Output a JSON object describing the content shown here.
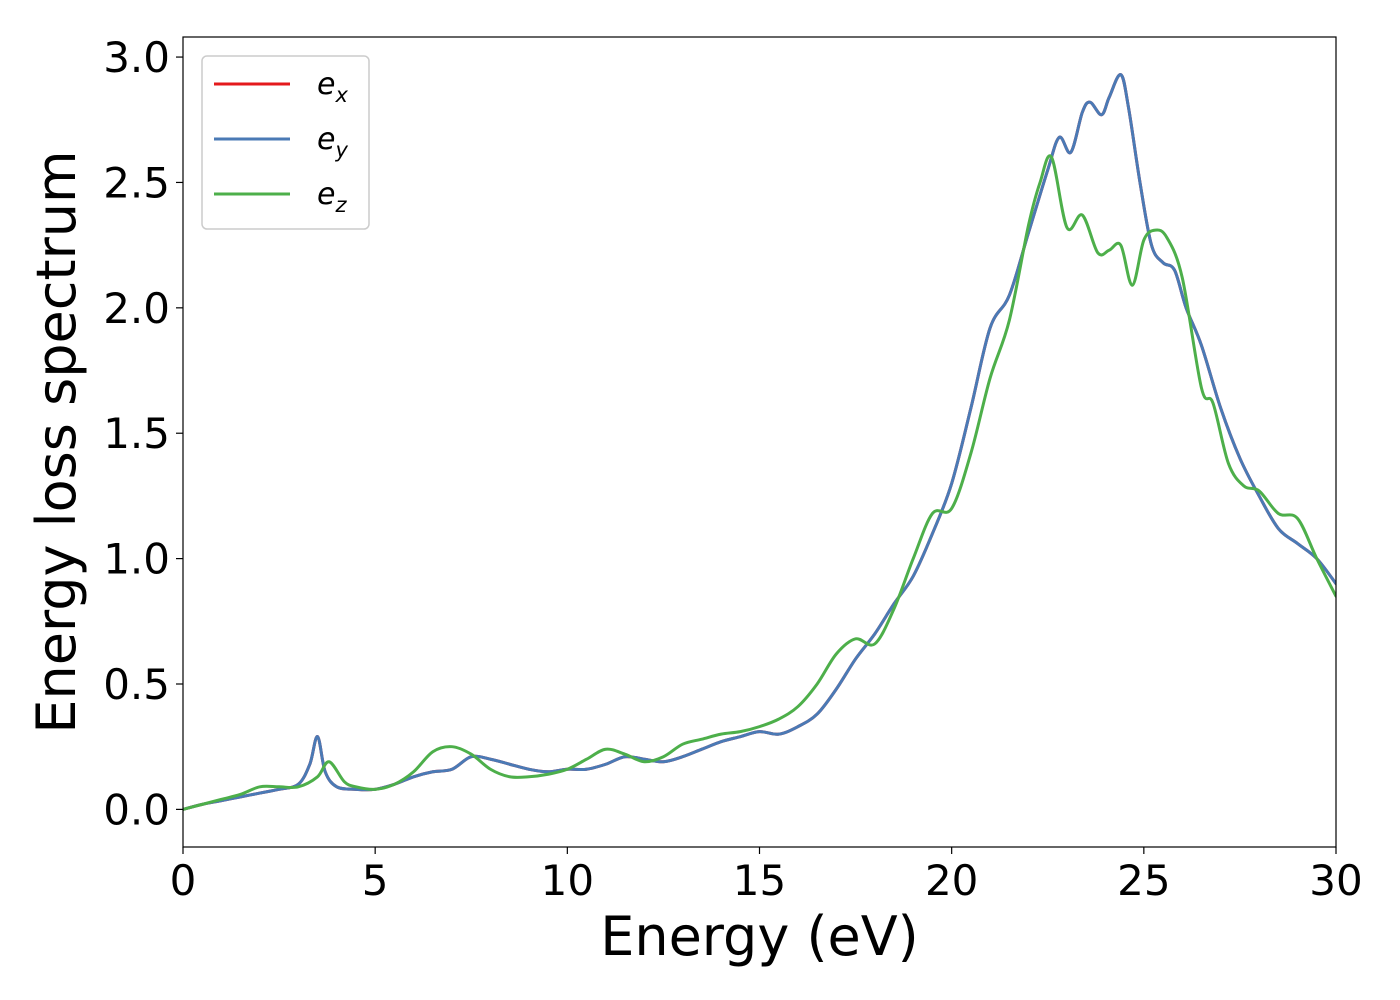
{
  "chart_data": {
    "type": "line",
    "xlabel": "Energy (eV)",
    "ylabel": "Energy loss spectrum",
    "xlim": [
      0,
      30
    ],
    "ylim": [
      -0.15,
      3.08
    ],
    "xticks": [
      0,
      5,
      10,
      15,
      20,
      25,
      30
    ],
    "xtick_labels": [
      "0",
      "5",
      "10",
      "15",
      "20",
      "25",
      "30"
    ],
    "yticks": [
      0.0,
      0.5,
      1.0,
      1.5,
      2.0,
      2.5,
      3.0
    ],
    "ytick_labels": [
      "0.0",
      "0.5",
      "1.0",
      "1.5",
      "2.0",
      "2.5",
      "3.0"
    ],
    "grid": false,
    "legend_position": "top-left",
    "series": [
      {
        "name": "e_x",
        "label_main": "e",
        "label_sub": "x",
        "color": "#e41a1c",
        "x": [
          0,
          0.5,
          1,
          1.5,
          2,
          2.5,
          3,
          3.3,
          3.5,
          3.7,
          4,
          4.5,
          5,
          5.5,
          6,
          6.5,
          7,
          7.5,
          8,
          8.5,
          9,
          9.5,
          10,
          10.5,
          11,
          11.5,
          12,
          12.5,
          13,
          13.5,
          14,
          14.5,
          15,
          15.5,
          16,
          16.5,
          17,
          17.5,
          18,
          18.5,
          19,
          19.5,
          20,
          20.5,
          21,
          21.5,
          22,
          22.5,
          22.8,
          23.1,
          23.4,
          23.6,
          23.9,
          24.1,
          24.4,
          24.6,
          24.9,
          25.2,
          25.5,
          25.8,
          26.1,
          26.5,
          27,
          27.5,
          28,
          28.5,
          29,
          29.5,
          30
        ],
        "y": [
          0.0,
          0.02,
          0.035,
          0.05,
          0.065,
          0.08,
          0.1,
          0.18,
          0.29,
          0.15,
          0.09,
          0.08,
          0.08,
          0.1,
          0.13,
          0.15,
          0.16,
          0.21,
          0.2,
          0.18,
          0.16,
          0.15,
          0.16,
          0.16,
          0.18,
          0.21,
          0.2,
          0.19,
          0.21,
          0.24,
          0.27,
          0.29,
          0.31,
          0.3,
          0.33,
          0.38,
          0.48,
          0.6,
          0.7,
          0.82,
          0.93,
          1.1,
          1.3,
          1.6,
          1.92,
          2.05,
          2.3,
          2.55,
          2.68,
          2.62,
          2.78,
          2.82,
          2.77,
          2.84,
          2.93,
          2.8,
          2.5,
          2.25,
          2.18,
          2.15,
          2.0,
          1.85,
          1.6,
          1.4,
          1.25,
          1.12,
          1.06,
          1.0,
          0.9
        ]
      },
      {
        "name": "e_y",
        "label_main": "e",
        "label_sub": "y",
        "color": "#4a7ab5",
        "x": [
          0,
          0.5,
          1,
          1.5,
          2,
          2.5,
          3,
          3.3,
          3.5,
          3.7,
          4,
          4.5,
          5,
          5.5,
          6,
          6.5,
          7,
          7.5,
          8,
          8.5,
          9,
          9.5,
          10,
          10.5,
          11,
          11.5,
          12,
          12.5,
          13,
          13.5,
          14,
          14.5,
          15,
          15.5,
          16,
          16.5,
          17,
          17.5,
          18,
          18.5,
          19,
          19.5,
          20,
          20.5,
          21,
          21.5,
          22,
          22.5,
          22.8,
          23.1,
          23.4,
          23.6,
          23.9,
          24.1,
          24.4,
          24.6,
          24.9,
          25.2,
          25.5,
          25.8,
          26.1,
          26.5,
          27,
          27.5,
          28,
          28.5,
          29,
          29.5,
          30
        ],
        "y": [
          0.0,
          0.02,
          0.035,
          0.05,
          0.065,
          0.08,
          0.1,
          0.18,
          0.29,
          0.15,
          0.09,
          0.08,
          0.08,
          0.1,
          0.13,
          0.15,
          0.16,
          0.21,
          0.2,
          0.18,
          0.16,
          0.15,
          0.16,
          0.16,
          0.18,
          0.21,
          0.2,
          0.19,
          0.21,
          0.24,
          0.27,
          0.29,
          0.31,
          0.3,
          0.33,
          0.38,
          0.48,
          0.6,
          0.7,
          0.82,
          0.93,
          1.1,
          1.3,
          1.6,
          1.92,
          2.05,
          2.3,
          2.55,
          2.68,
          2.62,
          2.78,
          2.82,
          2.77,
          2.84,
          2.93,
          2.8,
          2.5,
          2.25,
          2.18,
          2.15,
          2.0,
          1.85,
          1.6,
          1.4,
          1.25,
          1.12,
          1.06,
          1.0,
          0.9
        ]
      },
      {
        "name": "e_z",
        "label_main": "e",
        "label_sub": "z",
        "color": "#4daf4a",
        "x": [
          0,
          0.5,
          1,
          1.5,
          2,
          2.5,
          3,
          3.5,
          3.8,
          4.2,
          4.5,
          5,
          5.5,
          6,
          6.5,
          7,
          7.5,
          8,
          8.5,
          9,
          9.5,
          10,
          10.5,
          11,
          11.5,
          12,
          12.5,
          13,
          13.5,
          14,
          14.5,
          15,
          15.5,
          16,
          16.5,
          17,
          17.5,
          18,
          18.5,
          19,
          19.5,
          20,
          20.5,
          21,
          21.5,
          22,
          22.3,
          22.6,
          23,
          23.4,
          23.8,
          24.1,
          24.4,
          24.7,
          25,
          25.3,
          25.6,
          26,
          26.5,
          26.8,
          27.2,
          27.6,
          28,
          28.5,
          29,
          29.5,
          30
        ],
        "y": [
          0.0,
          0.02,
          0.04,
          0.06,
          0.09,
          0.09,
          0.09,
          0.13,
          0.19,
          0.11,
          0.09,
          0.08,
          0.1,
          0.15,
          0.23,
          0.25,
          0.22,
          0.16,
          0.13,
          0.13,
          0.14,
          0.16,
          0.2,
          0.24,
          0.22,
          0.19,
          0.21,
          0.26,
          0.28,
          0.3,
          0.31,
          0.33,
          0.36,
          0.41,
          0.5,
          0.62,
          0.68,
          0.66,
          0.8,
          1.0,
          1.18,
          1.2,
          1.42,
          1.72,
          1.95,
          2.33,
          2.5,
          2.6,
          2.32,
          2.37,
          2.22,
          2.23,
          2.25,
          2.09,
          2.27,
          2.31,
          2.28,
          2.12,
          1.68,
          1.62,
          1.38,
          1.29,
          1.27,
          1.18,
          1.16,
          1.0,
          0.85
        ]
      }
    ]
  }
}
